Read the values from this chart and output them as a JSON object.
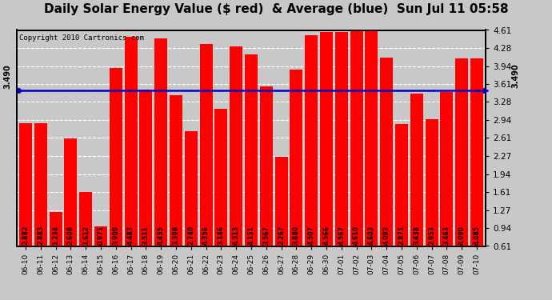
{
  "title": "Daily Solar Energy Value ($ red)  & Average (blue)  Sun Jul 11 05:58",
  "copyright": "Copyright 2010 Cartronics.com",
  "categories": [
    "06-10",
    "06-11",
    "06-12",
    "06-13",
    "06-14",
    "06-15",
    "06-16",
    "06-17",
    "06-18",
    "06-19",
    "06-20",
    "06-21",
    "06-22",
    "06-23",
    "06-24",
    "06-25",
    "06-26",
    "06-27",
    "06-28",
    "06-29",
    "06-30",
    "07-01",
    "07-02",
    "07-03",
    "07-04",
    "07-05",
    "07-06",
    "07-07",
    "07-08",
    "07-09",
    "07-10"
  ],
  "values": [
    2.882,
    2.883,
    1.234,
    2.608,
    1.612,
    0.971,
    3.9,
    4.483,
    3.511,
    4.455,
    3.398,
    2.74,
    4.356,
    3.146,
    4.313,
    4.151,
    3.567,
    2.267,
    3.88,
    4.507,
    4.566,
    4.567,
    4.61,
    4.603,
    4.093,
    2.871,
    3.438,
    2.953,
    3.463,
    4.09,
    4.085
  ],
  "average": 3.49,
  "bar_color": "#ff0000",
  "avg_line_color": "#0000cc",
  "background_color": "#c8c8c8",
  "plot_bg_color": "#c8c8c8",
  "ylim_min": 0.61,
  "ylim_max": 4.61,
  "yticks": [
    0.61,
    0.94,
    1.27,
    1.61,
    1.94,
    2.27,
    2.61,
    2.94,
    3.28,
    3.61,
    3.94,
    4.28,
    4.61
  ],
  "grid_color": "#ffffff",
  "title_fontsize": 11,
  "avg_label": "3.490",
  "label_fontsize": 5.5,
  "tick_fontsize": 7.5,
  "xlabel_fontsize": 6.5,
  "copyright_fontsize": 6.5
}
